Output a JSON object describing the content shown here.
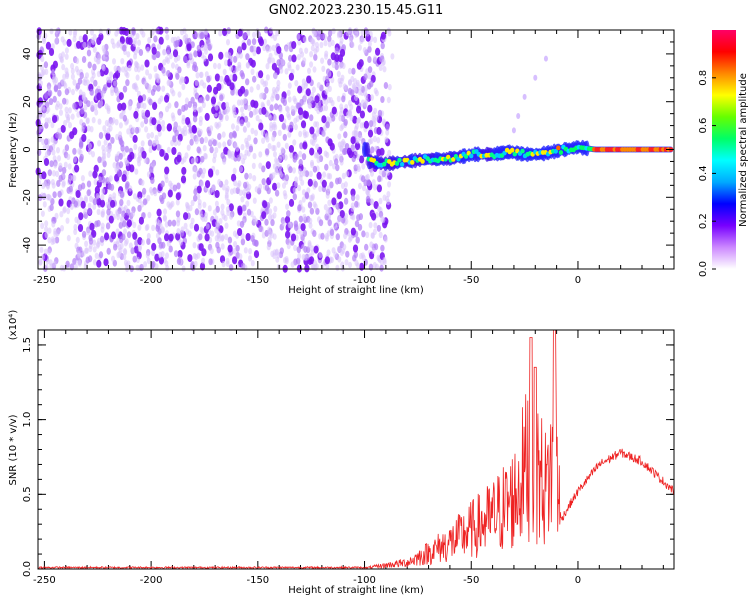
{
  "title": "GN02.2023.230.15.45.G11",
  "chart_data": [
    {
      "type": "heatmap",
      "xlabel": "Height of straight line (km)",
      "ylabel": "Frequency (Hz)",
      "xlim": [
        -253,
        45
      ],
      "ylim": [
        -50,
        50
      ],
      "x_ticks": [
        -250,
        -200,
        -150,
        -100,
        -50,
        0
      ],
      "x_tick_labels": [
        "-250",
        "-200",
        "-150",
        "-100",
        "-50",
        "0"
      ],
      "y_ticks": [
        40,
        20,
        0,
        -20,
        -40
      ],
      "y_tick_labels": [
        "40",
        "20",
        "0",
        "-20",
        "-40"
      ],
      "noise_region_x": [
        -253,
        -88
      ],
      "signal_track": [
        {
          "x": -98,
          "y": -5
        },
        {
          "x": -90,
          "y": -6
        },
        {
          "x": -80,
          "y": -5
        },
        {
          "x": -70,
          "y": -4
        },
        {
          "x": -62,
          "y": -4
        },
        {
          "x": -55,
          "y": -3
        },
        {
          "x": -48,
          "y": -2
        },
        {
          "x": -40,
          "y": -2
        },
        {
          "x": -32,
          "y": -1
        },
        {
          "x": -25,
          "y": -2
        },
        {
          "x": -18,
          "y": -2
        },
        {
          "x": -12,
          "y": -1
        },
        {
          "x": -6,
          "y": 0
        },
        {
          "x": 0,
          "y": 1
        },
        {
          "x": 8,
          "y": 0
        },
        {
          "x": 20,
          "y": 0
        },
        {
          "x": 30,
          "y": 0
        },
        {
          "x": 44,
          "y": 0
        }
      ],
      "colorbar": {
        "label": "Normalized spectral amplitude",
        "ticks": [
          "0.0",
          "0.2",
          "0.4",
          "0.6",
          "0.8"
        ],
        "range": [
          0,
          1
        ],
        "colors": [
          "#ffffff",
          "#cc88ff",
          "#7700ff",
          "#0000ff",
          "#00aaff",
          "#00ffff",
          "#00ff66",
          "#66ff00",
          "#ffff00",
          "#ff8800",
          "#ff0000",
          "#ff0066"
        ]
      }
    },
    {
      "type": "line",
      "xlabel": "Height of straight line (km)",
      "ylabel": "SNR (10 * v/v)",
      "y_multiplier": "(x10⁴)",
      "xlim": [
        -253,
        45
      ],
      "ylim": [
        0,
        1.6
      ],
      "x_ticks": [
        -250,
        -200,
        -150,
        -100,
        -50,
        0
      ],
      "x_tick_labels": [
        "-250",
        "-200",
        "-150",
        "-100",
        "-50",
        "0"
      ],
      "y_ticks": [
        0.0,
        0.5,
        1.0,
        1.5
      ],
      "y_tick_labels": [
        "0.0",
        "0.5",
        "1.0",
        "1.5"
      ],
      "color": "#ee2222",
      "envelope": [
        {
          "x": -253,
          "y": 0.01
        },
        {
          "x": -100,
          "y": 0.01
        },
        {
          "x": -80,
          "y": 0.07
        },
        {
          "x": -60,
          "y": 0.28
        },
        {
          "x": -50,
          "y": 0.42
        },
        {
          "x": -40,
          "y": 0.55
        },
        {
          "x": -30,
          "y": 0.75
        },
        {
          "x": -22,
          "y": 1.25
        },
        {
          "x": -15,
          "y": 0.85
        },
        {
          "x": -10,
          "y": 1.35
        },
        {
          "x": -8,
          "y": 0.33
        },
        {
          "x": 0,
          "y": 0.52
        },
        {
          "x": 10,
          "y": 0.7
        },
        {
          "x": 20,
          "y": 0.78
        },
        {
          "x": 30,
          "y": 0.72
        },
        {
          "x": 45,
          "y": 0.52
        }
      ],
      "peaks": [
        {
          "x": -22,
          "y": 1.55
        },
        {
          "x": -20,
          "y": 1.35
        },
        {
          "x": -11,
          "y": 1.6
        }
      ]
    }
  ]
}
